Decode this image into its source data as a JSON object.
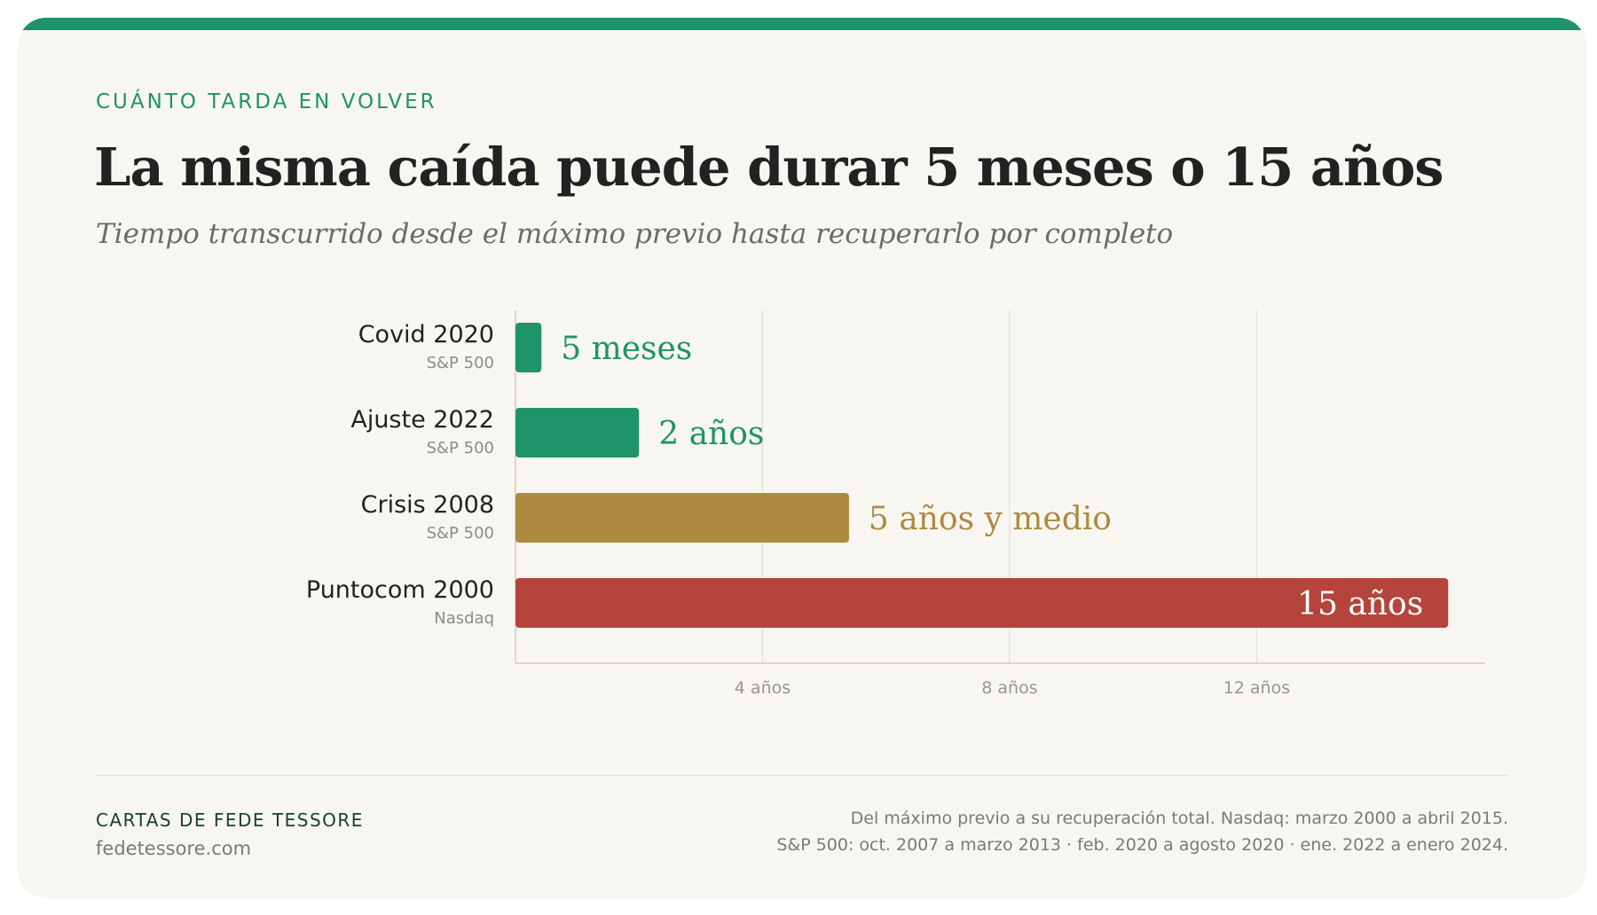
{
  "header": {
    "eyebrow": "CUÁNTO TARDA EN VOLVER",
    "title": "La misma caída puede durar 5 meses o 15 años",
    "subtitle": "Tiempo transcurrido desde el máximo previo hasta recuperarlo por completo"
  },
  "chart_data": {
    "type": "bar",
    "orientation": "horizontal",
    "x_unit": "años",
    "xlim": [
      0,
      15.7
    ],
    "x_ticks": [
      {
        "value": 4,
        "label": "4 años"
      },
      {
        "value": 8,
        "label": "8 años"
      },
      {
        "value": 12,
        "label": "12 años"
      }
    ],
    "grid": true,
    "categories": [
      {
        "name": "Covid 2020",
        "index": "S&P 500",
        "value": 0.42,
        "label": "5 meses",
        "color": "#1f936a",
        "label_inside": false
      },
      {
        "name": "Ajuste 2022",
        "index": "S&P 500",
        "value": 2.0,
        "label": "2 años",
        "color": "#1f936a",
        "label_inside": false
      },
      {
        "name": "Crisis 2008",
        "index": "S&P 500",
        "value": 5.4,
        "label": "5 años y medio",
        "color": "#ae8a40",
        "label_inside": false
      },
      {
        "name": "Puntocom 2000",
        "index": "Nasdaq",
        "value": 15.1,
        "label": "15 años",
        "color": "#b5443c",
        "label_inside": true
      }
    ]
  },
  "footer": {
    "brand": "CARTAS DE FEDE TESSORE",
    "site": "fedetessore.com",
    "note_line1": "Del máximo previo a su recuperación total. Nasdaq: marzo 2000 a abril 2015.",
    "note_line2": "S&P 500: oct. 2007 a marzo 2013 · feb. 2020 a agosto 2020 · ene. 2022 a enero 2024."
  }
}
